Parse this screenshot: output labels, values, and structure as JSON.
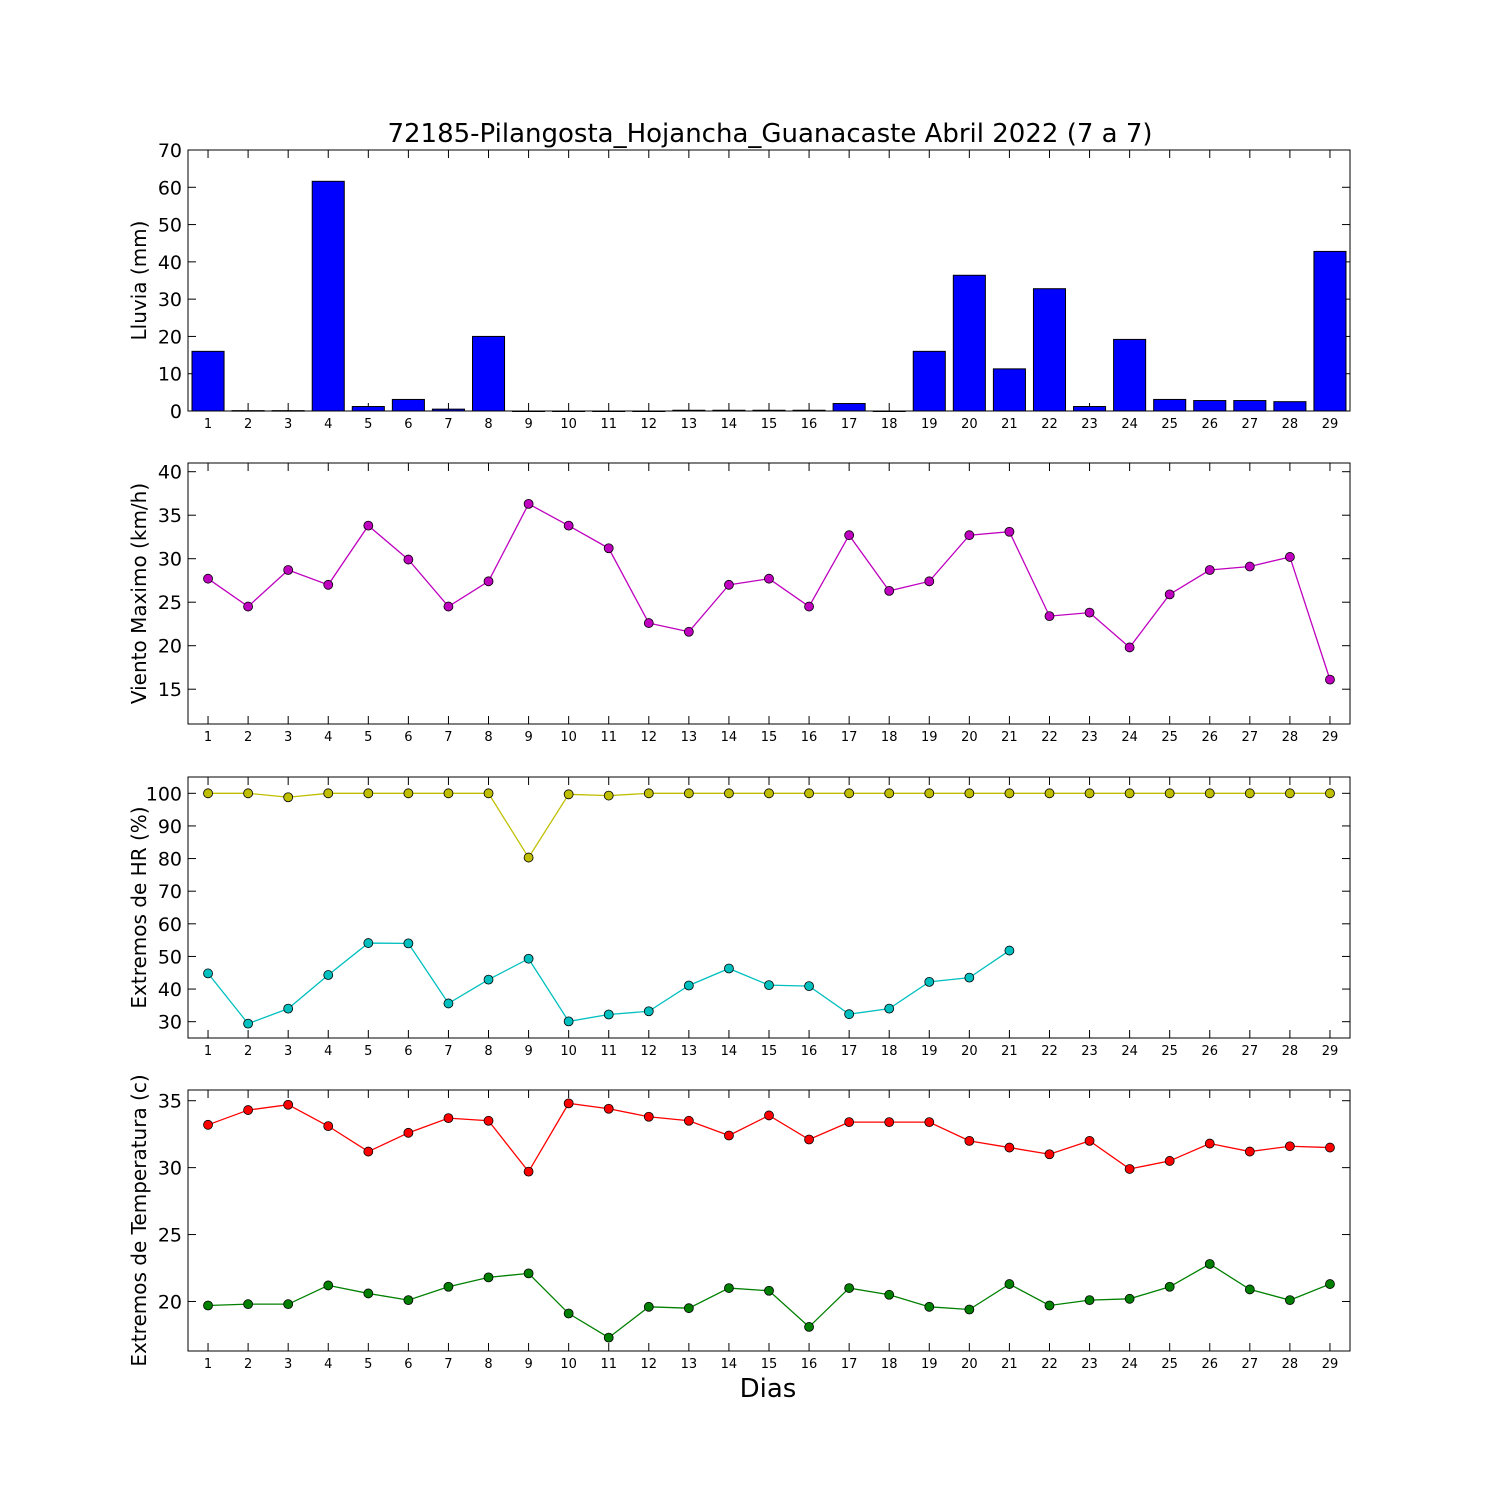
{
  "figure": {
    "title": "72185-Pilangosta_Hojancha_Guanacaste Abril 2022  (7 a 7)",
    "xlabel": "Dias"
  },
  "chart_data": [
    {
      "type": "bar",
      "ylabel": "Lluvia (mm)",
      "ylim": [
        0,
        70
      ],
      "yticks": [
        0,
        10,
        20,
        30,
        40,
        50,
        60,
        70
      ],
      "x": [
        1,
        2,
        3,
        4,
        5,
        6,
        7,
        8,
        9,
        10,
        11,
        12,
        13,
        14,
        15,
        16,
        17,
        18,
        19,
        20,
        21,
        22,
        23,
        24,
        25,
        26,
        27,
        28,
        29
      ],
      "series": [
        {
          "color": "#0000ff",
          "values": [
            16.0,
            0.1,
            0.1,
            61.6,
            1.2,
            3.1,
            0.5,
            20.0,
            0.0,
            0.0,
            0.0,
            0.0,
            0.2,
            0.2,
            0.2,
            0.2,
            2.0,
            0.0,
            16.0,
            36.4,
            11.3,
            32.8,
            1.2,
            19.2,
            3.1,
            2.8,
            2.8,
            2.5,
            42.8
          ]
        }
      ],
      "grid": false
    },
    {
      "type": "line",
      "ylabel": "Viento Maximo (km/h)",
      "ylim": [
        11,
        41
      ],
      "yticks": [
        15,
        20,
        25,
        30,
        35,
        40
      ],
      "x": [
        1,
        2,
        3,
        4,
        5,
        6,
        7,
        8,
        9,
        10,
        11,
        12,
        13,
        14,
        15,
        16,
        17,
        18,
        19,
        20,
        21,
        22,
        23,
        24,
        25,
        26,
        27,
        28,
        29
      ],
      "series": [
        {
          "color": "#bf00bf",
          "values": [
            27.7,
            24.5,
            28.7,
            27.0,
            33.8,
            29.9,
            24.5,
            27.4,
            36.3,
            33.8,
            31.2,
            22.6,
            21.6,
            27.0,
            27.7,
            24.5,
            32.7,
            26.3,
            27.4,
            32.7,
            33.1,
            23.4,
            23.8,
            19.8,
            25.9,
            28.7,
            29.1,
            30.2,
            16.1
          ]
        }
      ],
      "grid": false
    },
    {
      "type": "line",
      "ylabel": "Extremos de HR (%)",
      "ylim": [
        25,
        105
      ],
      "yticks": [
        30,
        40,
        50,
        60,
        70,
        80,
        90,
        100
      ],
      "x": [
        1,
        2,
        3,
        4,
        5,
        6,
        7,
        8,
        9,
        10,
        11,
        12,
        13,
        14,
        15,
        16,
        17,
        18,
        19,
        20,
        21,
        22,
        23,
        24,
        25,
        26,
        27,
        28,
        29
      ],
      "series": [
        {
          "color": "#bfbf00",
          "values": [
            100,
            100,
            98.8,
            100,
            100,
            100,
            100,
            100,
            80.3,
            99.7,
            99.3,
            100,
            100,
            100,
            100,
            100,
            100,
            100,
            100,
            100,
            100,
            100,
            100,
            100,
            100,
            100,
            100,
            100,
            100
          ]
        },
        {
          "color": "#00bfbf",
          "values": [
            44.8,
            29.4,
            34.0,
            44.3,
            54.1,
            54.0,
            35.6,
            42.9,
            49.3,
            30.1,
            32.2,
            33.2,
            41.1,
            46.3,
            41.2,
            40.9,
            32.3,
            34.0,
            42.2,
            43.5,
            51.8,
            null,
            null,
            null,
            null,
            null,
            null,
            null,
            null
          ]
        }
      ],
      "grid": false
    },
    {
      "type": "line",
      "ylabel": "Extremos de Temperatura (c)",
      "ylim": [
        16.3,
        35.8
      ],
      "yticks": [
        20,
        25,
        30,
        35
      ],
      "x": [
        1,
        2,
        3,
        4,
        5,
        6,
        7,
        8,
        9,
        10,
        11,
        12,
        13,
        14,
        15,
        16,
        17,
        18,
        19,
        20,
        21,
        22,
        23,
        24,
        25,
        26,
        27,
        28,
        29
      ],
      "series": [
        {
          "color": "#ff0000",
          "values": [
            33.2,
            34.3,
            34.7,
            33.1,
            31.2,
            32.6,
            33.7,
            33.5,
            29.7,
            34.8,
            34.4,
            33.8,
            33.5,
            32.4,
            33.9,
            32.1,
            33.4,
            33.4,
            33.4,
            32.0,
            31.5,
            31.0,
            32.0,
            29.9,
            30.5,
            31.8,
            31.2,
            31.6,
            31.5
          ]
        },
        {
          "color": "#008000",
          "values": [
            19.7,
            19.8,
            19.8,
            21.2,
            20.6,
            20.1,
            21.1,
            21.8,
            22.1,
            19.1,
            17.3,
            19.6,
            19.5,
            21.0,
            20.8,
            18.1,
            21.0,
            20.5,
            19.6,
            19.4,
            21.3,
            19.7,
            20.1,
            20.2,
            21.1,
            22.8,
            20.9,
            20.1,
            21.3
          ]
        }
      ],
      "grid": false
    }
  ]
}
